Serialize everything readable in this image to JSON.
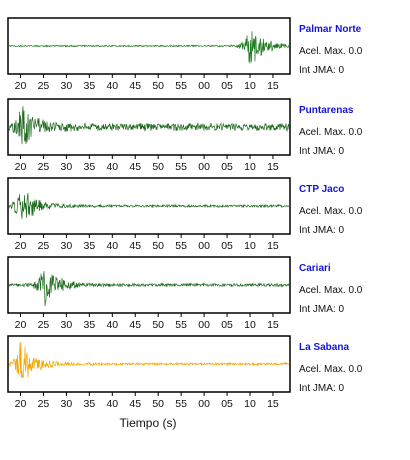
{
  "chart_data": {
    "type": "line",
    "xlabel": "Tiempo (s)",
    "x_ticks": [
      "20",
      "25",
      "30",
      "35",
      "40",
      "45",
      "50",
      "55",
      "00",
      "05",
      "10",
      "15"
    ],
    "panels": [
      {
        "station": "Palmar Norte",
        "acel": "Acel. Max. 0.0",
        "int": "Int JMA: 0",
        "color": "#1f7a1f",
        "burst_at": "10",
        "amplitude": 0.85,
        "noise": 0.03
      },
      {
        "station": "Puntarenas",
        "acel": "Acel. Max. 0.0",
        "int": "Int JMA: 0",
        "color": "#1f6b1f",
        "burst_at": "20",
        "amplitude": 0.8,
        "noise": 0.15
      },
      {
        "station": "CTP Jaco",
        "acel": "Acel. Max. 0.0",
        "int": "Int JMA: 0",
        "color": "#1f6b1f",
        "burst_at": "34",
        "amplitude": 0.85,
        "noise": 0.05
      },
      {
        "station": "Cariari",
        "acel": "Acel. Max. 0.0",
        "int": "Int JMA: 0",
        "color": "#1f6b1f",
        "burst_at": "25",
        "amplitude": 0.85,
        "noise": 0.06
      },
      {
        "station": "La Sabana",
        "acel": "Acel. Max. 0.0",
        "int": "Int JMA: 0",
        "color": "#f0a800",
        "burst_at": "38",
        "amplitude": 0.9,
        "noise": 0.05
      }
    ]
  }
}
